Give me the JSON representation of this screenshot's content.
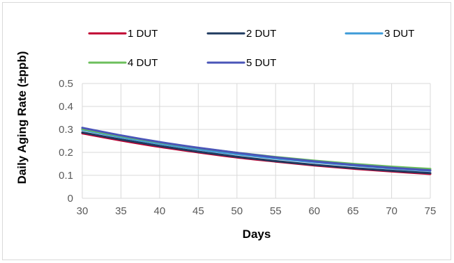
{
  "chart_data": {
    "type": "line",
    "title": "",
    "xlabel": "Days",
    "ylabel": "Daily Aging Rate (±ppb)",
    "xlim": [
      30,
      75
    ],
    "ylim": [
      0,
      0.5
    ],
    "x_ticks": [
      30,
      35,
      40,
      45,
      50,
      55,
      60,
      65,
      70,
      75
    ],
    "y_ticks": [
      0,
      0.1,
      0.2,
      0.3,
      0.4,
      0.5
    ],
    "grid": true,
    "legend_position": "top",
    "x": [
      30,
      35,
      40,
      45,
      50,
      55,
      60,
      65,
      70,
      75
    ],
    "series": [
      {
        "name": "1 DUT",
        "color": "#c00030",
        "values": [
          0.283,
          0.252,
          0.224,
          0.2,
          0.178,
          0.16,
          0.143,
          0.129,
          0.117,
          0.106
        ]
      },
      {
        "name": "2 DUT",
        "color": "#1f3a5f",
        "values": [
          0.287,
          0.256,
          0.228,
          0.203,
          0.181,
          0.162,
          0.146,
          0.132,
          0.12,
          0.11
        ]
      },
      {
        "name": "3 DUT",
        "color": "#3d9bd8",
        "values": [
          0.298,
          0.266,
          0.238,
          0.213,
          0.192,
          0.173,
          0.157,
          0.143,
          0.13,
          0.12
        ]
      },
      {
        "name": "4 DUT",
        "color": "#6cbf5c",
        "values": [
          0.302,
          0.271,
          0.243,
          0.219,
          0.198,
          0.18,
          0.164,
          0.15,
          0.138,
          0.128
        ]
      },
      {
        "name": "5 DUT",
        "color": "#4a55b8",
        "values": [
          0.307,
          0.274,
          0.245,
          0.22,
          0.198,
          0.178,
          0.161,
          0.146,
          0.133,
          0.122
        ]
      }
    ]
  }
}
